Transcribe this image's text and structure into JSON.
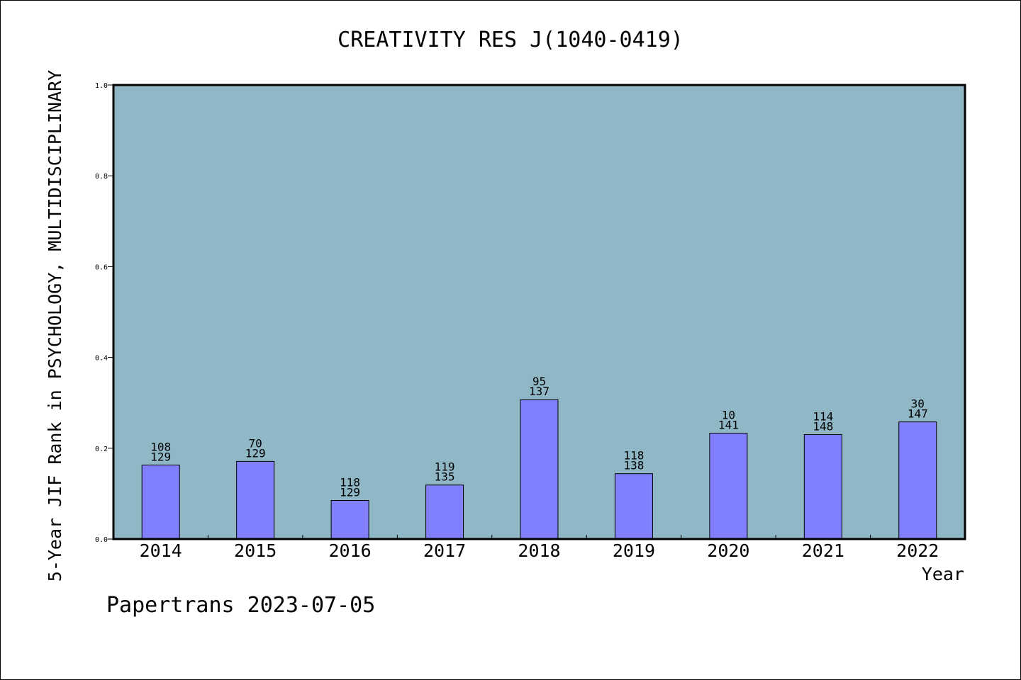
{
  "chart_data": {
    "type": "bar",
    "title": "CREATIVITY RES J(1040-0419)",
    "xlabel": "Year",
    "ylabel": "5-Year JIF Rank in PSYCHOLOGY, MULTIDISCIPLINARY",
    "ylim": [
      0,
      1.0
    ],
    "yticks": [
      "0.0",
      "0.2",
      "0.4",
      "0.6",
      "0.8",
      "1.0"
    ],
    "grid": false,
    "categories": [
      "2014",
      "2015",
      "2016",
      "2017",
      "2018",
      "2019",
      "2020",
      "2021",
      "2022"
    ],
    "values": [
      0.163,
      0.171,
      0.085,
      0.119,
      0.307,
      0.144,
      0.233,
      0.23,
      0.258
    ],
    "ranks": [
      "108",
      "70",
      "118",
      "119",
      "95",
      "118",
      "10",
      "114",
      "30"
    ],
    "totals": [
      "129",
      "129",
      "129",
      "135",
      "137",
      "138",
      "141",
      "148",
      "147"
    ],
    "colors": {
      "plot_bg": "#8fb7c5",
      "bar": "#8080ff",
      "bar_edge": "#000000"
    }
  },
  "footer": "Papertrans 2023-07-05"
}
